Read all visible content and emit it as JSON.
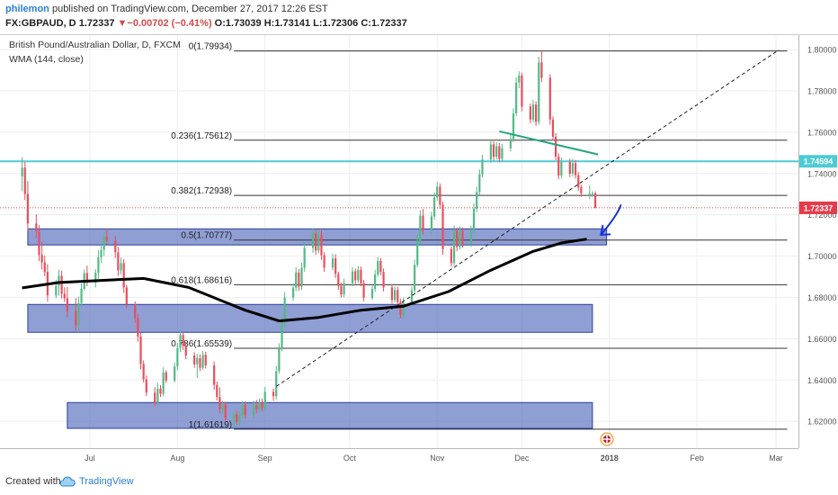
{
  "header": {
    "username": "philemon",
    "published_text": "published on TradingView.com, December 27, 2017 12:26 EST",
    "symbol": "FX:GBPAUD, D",
    "last": "1.72337",
    "change_arrow": "▼",
    "change": "−0.00702 (−0.41%)",
    "ohlc": "O:1.73039 H:1.73141 L:1.72306 C:1.72337"
  },
  "legend": {
    "title": "British Pound/Australian Dollar, D, FXCM",
    "indicator": "WMA (144, close)"
  },
  "footer": {
    "created_with": "Created with",
    "brand": "TradingView"
  },
  "colors": {
    "up": "#53b987",
    "down": "#eb4d5c",
    "wma": "#000000",
    "fib_line": "#333333",
    "resistance": "#4ecbd3",
    "zone_fill": "#4a62b8",
    "trend_green": "#26a680",
    "arrow_blue": "#1533d6",
    "price_label": "#e53c4c",
    "resistance_label": "#4ecbd3"
  },
  "chart_data": {
    "type": "candlestick",
    "title": "British Pound/Australian Dollar, D, FXCM",
    "x_tick_labels": [
      "Jul",
      "Aug",
      "Sep",
      "Oct",
      "Nov",
      "Dec",
      "2018",
      "Feb",
      "Mar"
    ],
    "y_tick_labels": [
      "1.62000",
      "1.64000",
      "1.66000",
      "1.68000",
      "1.70000",
      "1.72000",
      "1.74000",
      "1.76000",
      "1.78000",
      "1.80000"
    ],
    "ylim": [
      1.607,
      1.807
    ],
    "last_price": 1.72337,
    "last_price_label": "1.72337",
    "resistance_level": 1.7459,
    "resistance_label": "1.74594",
    "fib_levels": [
      {
        "label": "0(1.79934)",
        "value": 1.79934
      },
      {
        "label": "0.236(1.75612)",
        "value": 1.75612
      },
      {
        "label": "0.382(1.72938)",
        "value": 1.72938
      },
      {
        "label": "0.5(1.70777)",
        "value": 1.70777
      },
      {
        "label": "0.618(1.68616)",
        "value": 1.68616
      },
      {
        "label": "0.786(1.65539)",
        "value": 1.65539
      },
      {
        "label": "1(1.61619)",
        "value": 1.61619
      }
    ],
    "zones": [
      {
        "from": "2017-06-09",
        "to": "2017-12-31",
        "low": 1.7054,
        "high": 1.7132
      },
      {
        "from": "2017-06-09",
        "to": "2017-12-26",
        "low": 1.6631,
        "high": 1.6766
      },
      {
        "from": "2017-06-23",
        "to": "2017-12-26",
        "low": 1.6166,
        "high": 1.6291
      }
    ],
    "wma_144": [
      [
        "2017-06-07",
        1.6846
      ],
      [
        "2017-06-20",
        1.6872
      ],
      [
        "2017-07-05",
        1.6882
      ],
      [
        "2017-07-20",
        1.6892
      ],
      [
        "2017-08-05",
        1.6848
      ],
      [
        "2017-08-25",
        1.6738
      ],
      [
        "2017-09-06",
        1.6686
      ],
      [
        "2017-09-20",
        1.6703
      ],
      [
        "2017-10-05",
        1.6738
      ],
      [
        "2017-10-20",
        1.6757
      ],
      [
        "2017-11-05",
        1.6828
      ],
      [
        "2017-11-20",
        1.6932
      ],
      [
        "2017-12-05",
        1.7023
      ],
      [
        "2017-12-15",
        1.7064
      ],
      [
        "2017-12-24",
        1.7082
      ]
    ],
    "trend_line": {
      "from": [
        "2017-09-05",
        1.6369
      ],
      "to": [
        "2018-03-02",
        1.7998
      ]
    },
    "green_line": {
      "from": [
        "2017-11-23",
        1.7604
      ],
      "to": [
        "2017-12-28",
        1.7492
      ]
    },
    "candles": [
      [
        "2017-06-07",
        1.7386,
        1.748,
        1.7314,
        1.7428
      ],
      [
        "2017-06-08",
        1.7428,
        1.7456,
        1.7271,
        1.7301
      ],
      [
        "2017-06-09",
        1.7301,
        1.7364,
        1.7121,
        1.7158
      ],
      [
        "2017-06-12",
        1.7158,
        1.7202,
        1.7088,
        1.712
      ],
      [
        "2017-06-13",
        1.712,
        1.715,
        1.6976,
        1.7005
      ],
      [
        "2017-06-14",
        1.7005,
        1.7068,
        1.6935,
        1.697
      ],
      [
        "2017-06-15",
        1.697,
        1.7003,
        1.6902,
        1.6923
      ],
      [
        "2017-06-16",
        1.6923,
        1.6961,
        1.6779,
        1.681
      ],
      [
        "2017-06-19",
        1.681,
        1.6885,
        1.6796,
        1.6856
      ],
      [
        "2017-06-20",
        1.6856,
        1.6935,
        1.6808,
        1.6905
      ],
      [
        "2017-06-21",
        1.6905,
        1.6929,
        1.6794,
        1.6818
      ],
      [
        "2017-06-22",
        1.6818,
        1.6848,
        1.6778,
        1.6796
      ],
      [
        "2017-06-23",
        1.6796,
        1.685,
        1.6704,
        1.6733
      ],
      [
        "2017-06-26",
        1.6733,
        1.6797,
        1.6639,
        1.6665
      ],
      [
        "2017-06-27",
        1.6665,
        1.6804,
        1.6627,
        1.6772
      ],
      [
        "2017-06-28",
        1.6772,
        1.6868,
        1.6751,
        1.6842
      ],
      [
        "2017-06-29",
        1.6842,
        1.6935,
        1.6833,
        1.6918
      ],
      [
        "2017-06-30",
        1.6918,
        1.6954,
        1.6855,
        1.6871
      ],
      [
        "2017-07-03",
        1.6871,
        1.6937,
        1.6848,
        1.692
      ],
      [
        "2017-07-04",
        1.692,
        1.7028,
        1.689,
        1.6993
      ],
      [
        "2017-07-05",
        1.6993,
        1.7055,
        1.6967,
        1.703
      ],
      [
        "2017-07-06",
        1.703,
        1.7117,
        1.7,
        1.7095
      ],
      [
        "2017-07-07",
        1.7095,
        1.7133,
        1.7057,
        1.7074
      ],
      [
        "2017-07-10",
        1.7074,
        1.7097,
        1.6991,
        1.7019
      ],
      [
        "2017-07-11",
        1.7019,
        1.7045,
        1.6903,
        1.6931
      ],
      [
        "2017-07-12",
        1.6931,
        1.6993,
        1.6912,
        1.6966
      ],
      [
        "2017-07-13",
        1.6966,
        1.6985,
        1.6822,
        1.6848
      ],
      [
        "2017-07-14",
        1.6848,
        1.6861,
        1.6748,
        1.6766
      ],
      [
        "2017-07-17",
        1.6766,
        1.6781,
        1.6677,
        1.6701
      ],
      [
        "2017-07-18",
        1.6701,
        1.672,
        1.6586,
        1.6611
      ],
      [
        "2017-07-19",
        1.6611,
        1.6631,
        1.6452,
        1.6478
      ],
      [
        "2017-07-20",
        1.6478,
        1.6495,
        1.6388,
        1.6403
      ],
      [
        "2017-07-21",
        1.6403,
        1.6422,
        1.6322,
        1.6339
      ],
      [
        "2017-07-24",
        1.6339,
        1.6365,
        1.6274,
        1.629
      ],
      [
        "2017-07-25",
        1.629,
        1.6386,
        1.6276,
        1.6358
      ],
      [
        "2017-07-26",
        1.6358,
        1.6375,
        1.6318,
        1.6334
      ],
      [
        "2017-07-27",
        1.6334,
        1.6462,
        1.6321,
        1.6437
      ],
      [
        "2017-07-28",
        1.6437,
        1.6448,
        1.6386,
        1.6398
      ],
      [
        "2017-07-31",
        1.6398,
        1.6485,
        1.6388,
        1.6466
      ],
      [
        "2017-08-01",
        1.6466,
        1.6579,
        1.6447,
        1.6555
      ],
      [
        "2017-08-02",
        1.6555,
        1.6641,
        1.6535,
        1.6618
      ],
      [
        "2017-08-03",
        1.6618,
        1.6631,
        1.6545,
        1.6566
      ],
      [
        "2017-08-04",
        1.6566,
        1.6584,
        1.65,
        1.6519
      ],
      [
        "2017-08-07",
        1.6519,
        1.6535,
        1.6459,
        1.6476
      ],
      [
        "2017-08-08",
        1.6476,
        1.6527,
        1.641,
        1.6506
      ],
      [
        "2017-08-09",
        1.6506,
        1.6524,
        1.6443,
        1.6459
      ],
      [
        "2017-08-10",
        1.6459,
        1.654,
        1.645,
        1.6522
      ],
      [
        "2017-08-11",
        1.6522,
        1.6537,
        1.6456,
        1.6471
      ],
      [
        "2017-08-14",
        1.6471,
        1.649,
        1.6352,
        1.6377
      ],
      [
        "2017-08-15",
        1.6377,
        1.6393,
        1.6301,
        1.6318
      ],
      [
        "2017-08-16",
        1.6318,
        1.6365,
        1.6238,
        1.6258
      ],
      [
        "2017-08-17",
        1.6258,
        1.6298,
        1.6234,
        1.6282
      ],
      [
        "2017-08-18",
        1.6282,
        1.6295,
        1.62,
        1.6215
      ],
      [
        "2017-08-21",
        1.6215,
        1.6247,
        1.6173,
        1.6235
      ],
      [
        "2017-08-22",
        1.6235,
        1.6251,
        1.6184,
        1.6197
      ],
      [
        "2017-08-23",
        1.6197,
        1.6248,
        1.6174,
        1.623
      ],
      [
        "2017-08-24",
        1.623,
        1.6297,
        1.6218,
        1.628
      ],
      [
        "2017-08-25",
        1.628,
        1.6296,
        1.6213,
        1.6229
      ],
      [
        "2017-08-28",
        1.6229,
        1.6299,
        1.6216,
        1.6278
      ],
      [
        "2017-08-29",
        1.6278,
        1.6304,
        1.624,
        1.6259
      ],
      [
        "2017-08-30",
        1.6259,
        1.6311,
        1.6243,
        1.6294
      ],
      [
        "2017-08-31",
        1.6294,
        1.631,
        1.6249,
        1.6264
      ],
      [
        "2017-09-01",
        1.6264,
        1.6367,
        1.6252,
        1.6343
      ],
      [
        "2017-09-04",
        1.6343,
        1.636,
        1.63,
        1.6322
      ],
      [
        "2017-09-05",
        1.6322,
        1.6469,
        1.6305,
        1.6443
      ],
      [
        "2017-09-06",
        1.6443,
        1.6578,
        1.643,
        1.6553
      ],
      [
        "2017-09-07",
        1.6553,
        1.6703,
        1.6539,
        1.6678
      ],
      [
        "2017-09-08",
        1.6678,
        1.6826,
        1.6656,
        1.6799
      ],
      [
        "2017-09-11",
        1.6799,
        1.6867,
        1.6784,
        1.6847
      ],
      [
        "2017-09-12",
        1.6847,
        1.6946,
        1.683,
        1.6921
      ],
      [
        "2017-09-13",
        1.6921,
        1.6937,
        1.6832,
        1.6852
      ],
      [
        "2017-09-14",
        1.6852,
        1.6969,
        1.6836,
        1.6944
      ],
      [
        "2017-09-15",
        1.6944,
        1.7065,
        1.6925,
        1.704
      ],
      [
        "2017-09-18",
        1.704,
        1.7135,
        1.7015,
        1.711
      ],
      [
        "2017-09-19",
        1.711,
        1.7127,
        1.7006,
        1.7027
      ],
      [
        "2017-09-20",
        1.7027,
        1.7128,
        1.7013,
        1.7104
      ],
      [
        "2017-09-21",
        1.7104,
        1.7123,
        1.6982,
        1.7004
      ],
      [
        "2017-09-22",
        1.7004,
        1.7019,
        1.6924,
        1.6944
      ],
      [
        "2017-09-25",
        1.6944,
        1.7011,
        1.6931,
        1.6989
      ],
      [
        "2017-09-26",
        1.6989,
        1.7009,
        1.6894,
        1.6914
      ],
      [
        "2017-09-27",
        1.6914,
        1.6925,
        1.6837,
        1.6856
      ],
      [
        "2017-09-28",
        1.6856,
        1.6871,
        1.6799,
        1.6814
      ],
      [
        "2017-09-29",
        1.6814,
        1.6891,
        1.6801,
        1.6869
      ],
      [
        "2017-10-02",
        1.6869,
        1.6947,
        1.6854,
        1.6926
      ],
      [
        "2017-10-03",
        1.6926,
        1.694,
        1.6866,
        1.6883
      ],
      [
        "2017-10-04",
        1.6883,
        1.6951,
        1.687,
        1.6934
      ],
      [
        "2017-10-05",
        1.6934,
        1.6949,
        1.6853,
        1.6869
      ],
      [
        "2017-10-06",
        1.6869,
        1.6885,
        1.6781,
        1.6798
      ],
      [
        "2017-10-09",
        1.6798,
        1.6858,
        1.6787,
        1.6841
      ],
      [
        "2017-10-10",
        1.6841,
        1.6934,
        1.6827,
        1.6911
      ],
      [
        "2017-10-11",
        1.6911,
        1.6994,
        1.69,
        1.6977
      ],
      [
        "2017-10-12",
        1.6977,
        1.6991,
        1.6907,
        1.6923
      ],
      [
        "2017-10-13",
        1.6923,
        1.694,
        1.6829,
        1.6848
      ],
      [
        "2017-10-16",
        1.6848,
        1.6863,
        1.677,
        1.6787
      ],
      [
        "2017-10-17",
        1.6787,
        1.6853,
        1.6775,
        1.6836
      ],
      [
        "2017-10-18",
        1.6836,
        1.6852,
        1.6761,
        1.6778
      ],
      [
        "2017-10-19",
        1.6778,
        1.6794,
        1.6698,
        1.6715
      ],
      [
        "2017-10-20",
        1.6715,
        1.6798,
        1.6702,
        1.6778
      ],
      [
        "2017-10-23",
        1.6778,
        1.6855,
        1.6763,
        1.6834
      ],
      [
        "2017-10-24",
        1.6834,
        1.6983,
        1.682,
        1.6957
      ],
      [
        "2017-10-25",
        1.6957,
        1.7103,
        1.6945,
        1.7076
      ],
      [
        "2017-10-26",
        1.7076,
        1.7221,
        1.7061,
        1.7196
      ],
      [
        "2017-10-27",
        1.7196,
        1.7228,
        1.7104,
        1.7124
      ],
      [
        "2017-10-30",
        1.7124,
        1.7215,
        1.7108,
        1.7192
      ],
      [
        "2017-10-31",
        1.7192,
        1.7309,
        1.7175,
        1.7284
      ],
      [
        "2017-11-01",
        1.7284,
        1.7359,
        1.7268,
        1.7336
      ],
      [
        "2017-11-02",
        1.7336,
        1.7352,
        1.7228,
        1.7249
      ],
      [
        "2017-11-03",
        1.7249,
        1.7264,
        1.7007,
        1.7034
      ],
      [
        "2017-11-06",
        1.7034,
        1.7048,
        1.6948,
        1.6966
      ],
      [
        "2017-11-07",
        1.6966,
        1.7149,
        1.6954,
        1.7123
      ],
      [
        "2017-11-08",
        1.7123,
        1.7138,
        1.7024,
        1.7044
      ],
      [
        "2017-11-09",
        1.7044,
        1.7145,
        1.7031,
        1.7123
      ],
      [
        "2017-11-10",
        1.7123,
        1.7138,
        1.704,
        1.7057
      ],
      [
        "2017-11-13",
        1.7057,
        1.7147,
        1.7045,
        1.7125
      ],
      [
        "2017-11-14",
        1.7125,
        1.7256,
        1.7111,
        1.723
      ],
      [
        "2017-11-15",
        1.723,
        1.7336,
        1.7214,
        1.7311
      ],
      [
        "2017-11-16",
        1.7311,
        1.742,
        1.7297,
        1.7395
      ],
      [
        "2017-11-17",
        1.7395,
        1.749,
        1.738,
        1.7467
      ],
      [
        "2017-11-20",
        1.7467,
        1.7565,
        1.7452,
        1.7541
      ],
      [
        "2017-11-21",
        1.7541,
        1.7556,
        1.7462,
        1.7481
      ],
      [
        "2017-11-22",
        1.7481,
        1.7552,
        1.7467,
        1.7532
      ],
      [
        "2017-11-23",
        1.7532,
        1.7547,
        1.7454,
        1.7471
      ],
      [
        "2017-11-24",
        1.7471,
        1.7543,
        1.7456,
        1.7522
      ],
      [
        "2017-11-27",
        1.7522,
        1.759,
        1.7506,
        1.7567
      ],
      [
        "2017-11-28",
        1.7567,
        1.7716,
        1.7552,
        1.7691
      ],
      [
        "2017-11-29",
        1.7691,
        1.7865,
        1.7677,
        1.784
      ],
      [
        "2017-11-30",
        1.784,
        1.7895,
        1.7813,
        1.7874
      ],
      [
        "2017-12-01",
        1.7874,
        1.7888,
        1.7701,
        1.7724
      ],
      [
        "2017-12-04",
        1.7724,
        1.7739,
        1.7642,
        1.7661
      ],
      [
        "2017-12-05",
        1.7661,
        1.7756,
        1.7648,
        1.7734
      ],
      [
        "2017-12-06",
        1.7734,
        1.775,
        1.7629,
        1.765
      ],
      [
        "2017-12-07",
        1.765,
        1.7965,
        1.7636,
        1.7938
      ],
      [
        "2017-12-08",
        1.7938,
        1.7993,
        1.7842,
        1.7863
      ],
      [
        "2017-12-11",
        1.7863,
        1.788,
        1.7636,
        1.7661
      ],
      [
        "2017-12-12",
        1.7661,
        1.7677,
        1.7559,
        1.7578
      ],
      [
        "2017-12-13",
        1.7578,
        1.7595,
        1.7464,
        1.7482
      ],
      [
        "2017-12-14",
        1.7482,
        1.7498,
        1.7372,
        1.739
      ],
      [
        "2017-12-15",
        1.739,
        1.7478,
        1.7375,
        1.7456
      ],
      [
        "2017-12-18",
        1.7456,
        1.7472,
        1.7382,
        1.7399
      ],
      [
        "2017-12-19",
        1.7399,
        1.7472,
        1.7385,
        1.745
      ],
      [
        "2017-12-20",
        1.745,
        1.7466,
        1.7375,
        1.7392
      ],
      [
        "2017-12-21",
        1.7392,
        1.7407,
        1.7316,
        1.7333
      ],
      [
        "2017-12-22",
        1.7333,
        1.7346,
        1.7287,
        1.7304
      ],
      [
        "2017-12-25",
        1.7304,
        1.7342,
        1.7275,
        1.7304
      ],
      [
        "2017-12-26",
        1.7304,
        1.7314,
        1.7284,
        1.7304
      ],
      [
        "2017-12-27",
        1.7304,
        1.7314,
        1.7231,
        1.7234
      ]
    ]
  }
}
